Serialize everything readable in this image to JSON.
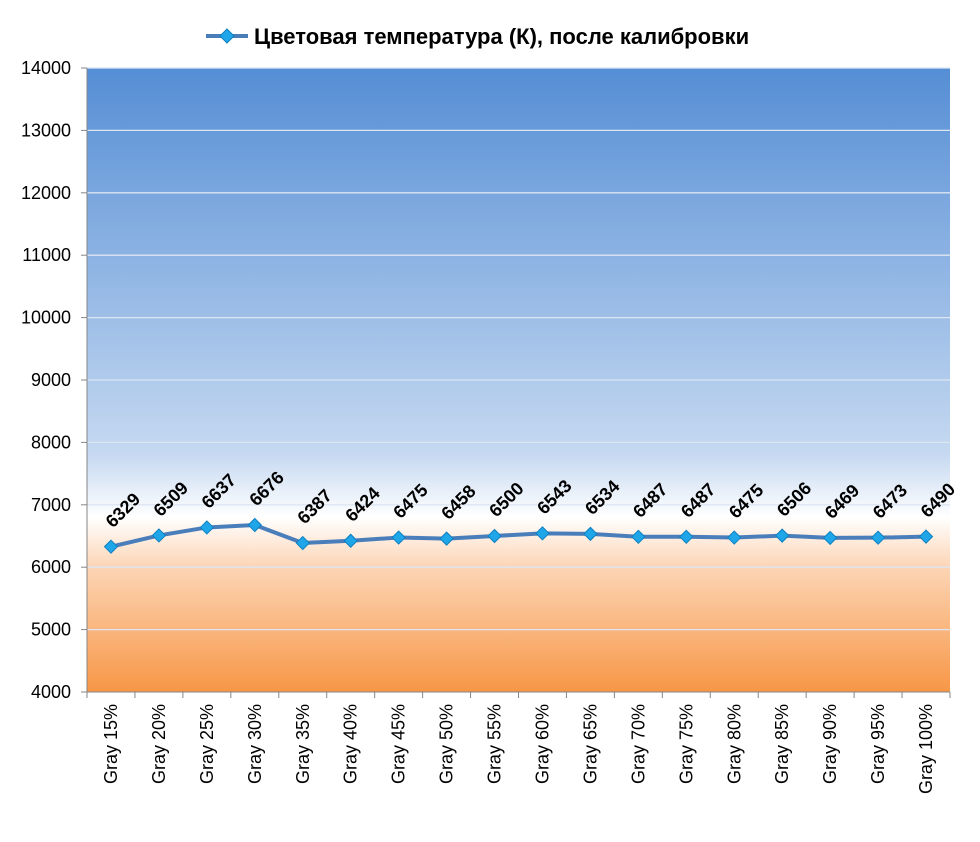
{
  "chart_data": {
    "type": "line",
    "categories": [
      "Gray 15%",
      "Gray 20%",
      "Gray 25%",
      "Gray 30%",
      "Gray 35%",
      "Gray 40%",
      "Gray 45%",
      "Gray 50%",
      "Gray 55%",
      "Gray 60%",
      "Gray 65%",
      "Gray 70%",
      "Gray 75%",
      "Gray 80%",
      "Gray 85%",
      "Gray 90%",
      "Gray 95%",
      "Gray 100%"
    ],
    "series": [
      {
        "name": "Цветовая температура (К), после калибровки",
        "values": [
          6329,
          6509,
          6637,
          6676,
          6387,
          6424,
          6475,
          6458,
          6500,
          6543,
          6534,
          6487,
          6487,
          6475,
          6506,
          6469,
          6473,
          6490
        ]
      }
    ],
    "ylim": [
      4000,
      14000
    ],
    "yticks": [
      4000,
      5000,
      6000,
      7000,
      8000,
      9000,
      10000,
      11000,
      12000,
      13000,
      14000
    ],
    "grid": true,
    "legend_position": "top",
    "colors": {
      "line": "#4A7EBB",
      "marker": "#1EA6E8",
      "bg_blue_top": "#558ED5",
      "bg_white": "#FFFFFF",
      "bg_orange_bottom": "#F79646",
      "gridline": "#DCE6F2"
    }
  }
}
